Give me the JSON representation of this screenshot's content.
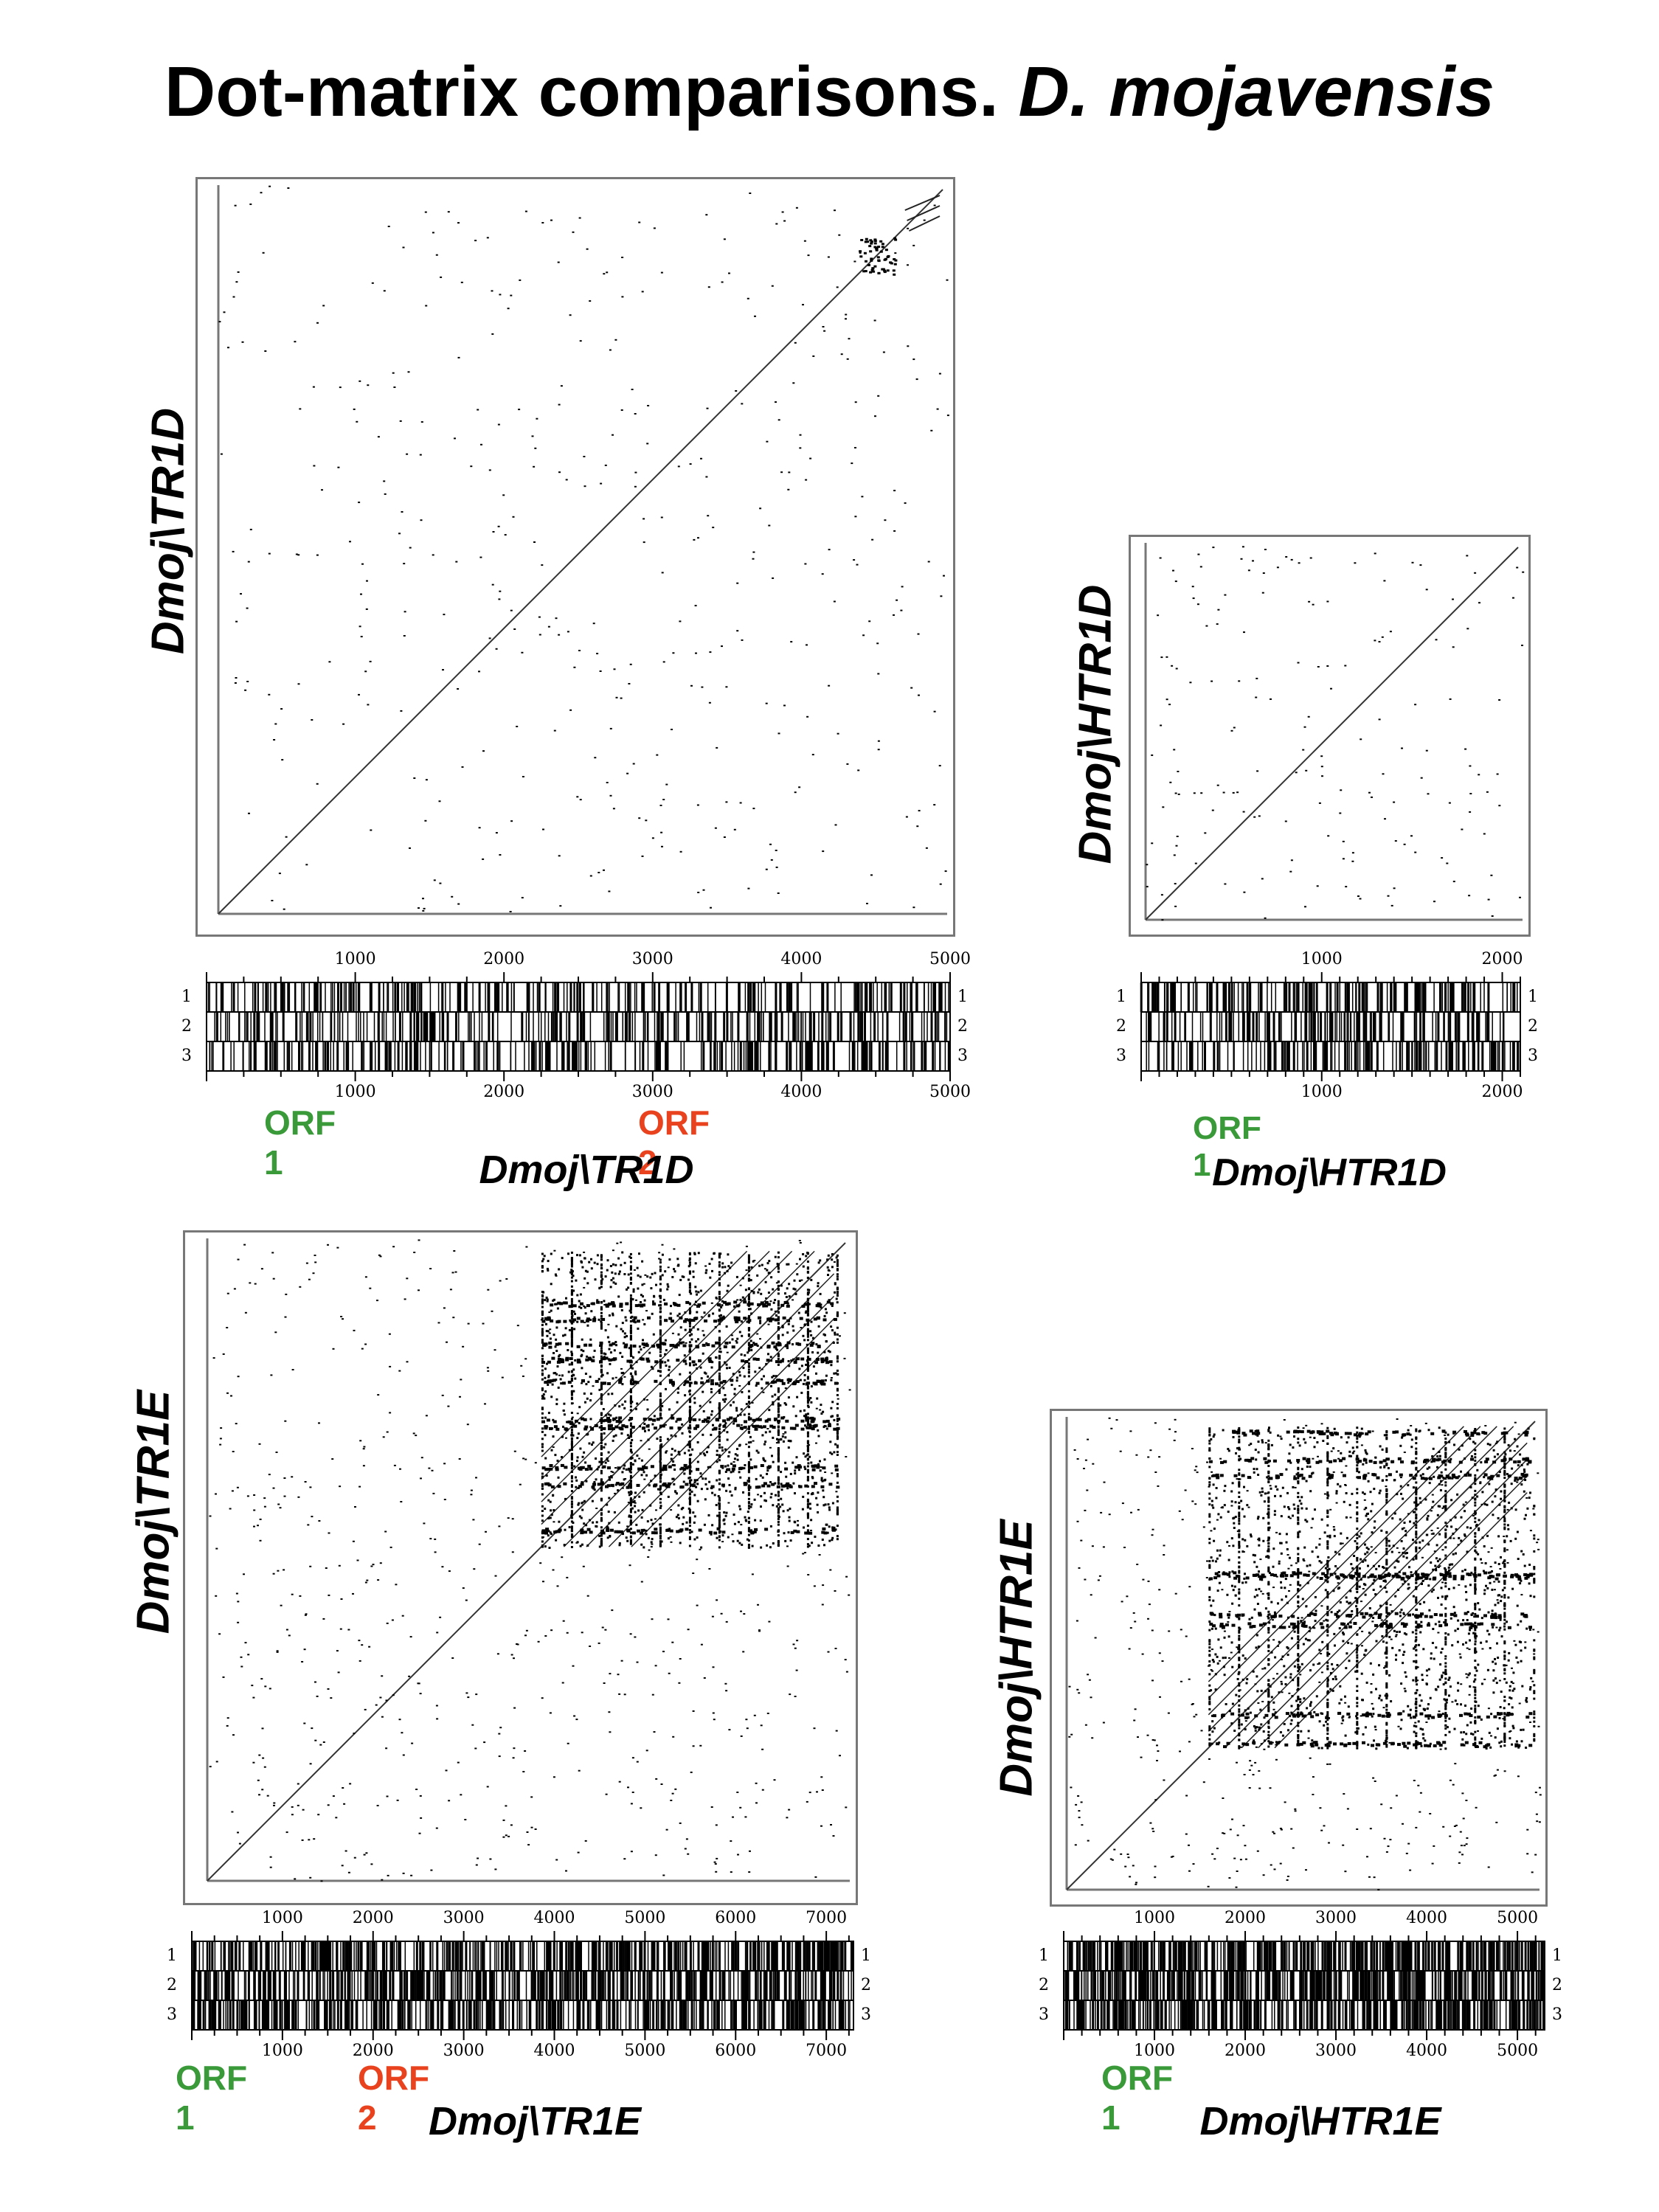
{
  "title": {
    "main": "Dot-matrix comparisons.",
    "species": "D. mojavensis"
  },
  "colors": {
    "orf1": "#3a9a3a",
    "orf2": "#e8431e",
    "ink": "#000000",
    "frame": "#777777"
  },
  "panels": [
    {
      "id": "tr1d",
      "ylabel": "Dmoj\\TR1D",
      "xlabel": "Dmoj\\TR1D",
      "length": 5000,
      "ticks": [
        "1000",
        "2000",
        "3000",
        "4000",
        "5000"
      ],
      "frames": [
        "1",
        "2",
        "3"
      ],
      "orfs": [
        {
          "label": "ORF 1",
          "color": "orf1"
        },
        {
          "label": "ORF 2",
          "color": "orf2"
        }
      ]
    },
    {
      "id": "htr1d",
      "ylabel": "Dmoj\\HTR1D",
      "xlabel": "Dmoj\\HTR1D",
      "length": 2100,
      "ticks": [
        "1000",
        "2000"
      ],
      "frames": [
        "1",
        "2",
        "3"
      ],
      "orfs": [
        {
          "label": "ORF 1",
          "color": "orf1"
        }
      ]
    },
    {
      "id": "tr1e",
      "ylabel": "Dmoj\\TR1E",
      "xlabel": "Dmoj\\TR1E",
      "length": 7300,
      "ticks": [
        "1000",
        "2000",
        "3000",
        "4000",
        "5000",
        "6000",
        "7000"
      ],
      "frames": [
        "1",
        "2",
        "3"
      ],
      "orfs": [
        {
          "label": "ORF 1",
          "color": "orf1"
        },
        {
          "label": "ORF 2",
          "color": "orf2"
        }
      ]
    },
    {
      "id": "htr1e",
      "ylabel": "Dmoj\\HTR1E",
      "xlabel": "Dmoj\\HTR1E",
      "length": 5300,
      "ticks": [
        "1000",
        "2000",
        "3000",
        "4000",
        "5000"
      ],
      "frames": [
        "1",
        "2",
        "3"
      ],
      "orfs": [
        {
          "label": "ORF 1",
          "color": "orf1"
        }
      ]
    }
  ]
}
